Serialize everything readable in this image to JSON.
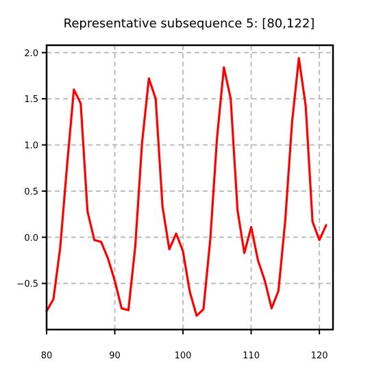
{
  "chart_data": {
    "type": "line",
    "title": "Representative subsequence 5: [80,122]",
    "xlabel": "",
    "ylabel": "",
    "xlim": [
      80,
      122
    ],
    "ylim": [
      -1.0,
      2.08
    ],
    "grid": true,
    "x_ticks": [
      80,
      90,
      100,
      110,
      120
    ],
    "x_tick_labels": [
      "80",
      "90",
      "100",
      "110",
      "120"
    ],
    "y_ticks": [
      -0.5,
      0.0,
      0.5,
      1.0,
      1.5,
      2.0
    ],
    "y_tick_labels": [
      "−0.5",
      "0.0",
      "0.5",
      "1.0",
      "1.5",
      "2.0"
    ],
    "series": [
      {
        "color": "#ff0000",
        "x": [
          80,
          81,
          82,
          83,
          84,
          85,
          86,
          87,
          88,
          89,
          90,
          91,
          92,
          93,
          94,
          95,
          96,
          97,
          98,
          99,
          100,
          101,
          102,
          103,
          104,
          105,
          106,
          107,
          108,
          109,
          110,
          111,
          112,
          113,
          114,
          115,
          116,
          117,
          118,
          119,
          120,
          121
        ],
        "y": [
          -0.8,
          -0.67,
          -0.11,
          0.78,
          1.6,
          1.45,
          0.28,
          -0.03,
          -0.05,
          -0.23,
          -0.47,
          -0.77,
          -0.79,
          -0.1,
          1.02,
          1.72,
          1.5,
          0.33,
          -0.13,
          0.04,
          -0.15,
          -0.59,
          -0.85,
          -0.78,
          -0.02,
          1.08,
          1.84,
          1.5,
          0.29,
          -0.17,
          0.11,
          -0.25,
          -0.47,
          -0.77,
          -0.58,
          0.18,
          1.25,
          1.94,
          1.42,
          0.17,
          -0.03,
          0.13
        ]
      }
    ]
  }
}
